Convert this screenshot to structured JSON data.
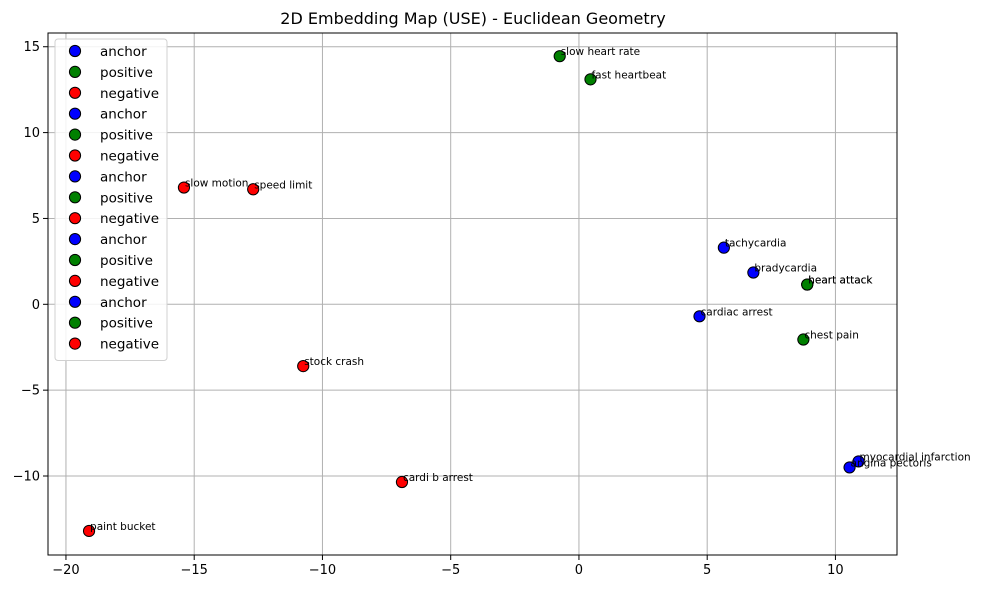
{
  "chart_data": {
    "type": "scatter",
    "title": "2D Embedding Map (USE) - Euclidean Geometry",
    "xlabel": "",
    "ylabel": "",
    "xlim": [
      -20.7,
      12.4
    ],
    "ylim": [
      -14.6,
      15.8
    ],
    "xticks": [
      -20,
      -15,
      -10,
      -5,
      0,
      5,
      10
    ],
    "yticks": [
      -10,
      -5,
      0,
      5,
      10,
      15
    ],
    "xtick_labels": [
      "−20",
      "−15",
      "−10",
      "−5",
      "0",
      "5",
      "10"
    ],
    "ytick_labels": [
      "−10",
      "−5",
      "0",
      "5",
      "10",
      "15"
    ],
    "grid": true,
    "legend_position": "upper-left",
    "colors": {
      "anchor": "#0000ff",
      "positive": "#008000",
      "negative": "#ff0000"
    },
    "legend": [
      {
        "label": "anchor",
        "role": "anchor"
      },
      {
        "label": "positive",
        "role": "positive"
      },
      {
        "label": "negative",
        "role": "negative"
      },
      {
        "label": "anchor",
        "role": "anchor"
      },
      {
        "label": "positive",
        "role": "positive"
      },
      {
        "label": "negative",
        "role": "negative"
      },
      {
        "label": "anchor",
        "role": "anchor"
      },
      {
        "label": "positive",
        "role": "positive"
      },
      {
        "label": "negative",
        "role": "negative"
      },
      {
        "label": "anchor",
        "role": "anchor"
      },
      {
        "label": "positive",
        "role": "positive"
      },
      {
        "label": "negative",
        "role": "negative"
      },
      {
        "label": "anchor",
        "role": "anchor"
      },
      {
        "label": "positive",
        "role": "positive"
      },
      {
        "label": "negative",
        "role": "negative"
      }
    ],
    "points": [
      {
        "label": "tachycardia",
        "role": "anchor",
        "x": 5.65,
        "y": 3.3
      },
      {
        "label": "fast heartbeat",
        "role": "positive",
        "x": 0.45,
        "y": 13.1
      },
      {
        "label": "speed limit",
        "role": "negative",
        "x": -12.7,
        "y": 6.7
      },
      {
        "label": "bradycardia",
        "role": "anchor",
        "x": 6.8,
        "y": 1.85
      },
      {
        "label": "slow heart rate",
        "role": "positive",
        "x": -0.75,
        "y": 14.45
      },
      {
        "label": "slow motion",
        "role": "negative",
        "x": -15.4,
        "y": 6.8
      },
      {
        "label": "cardiac arrest",
        "role": "anchor",
        "x": 4.7,
        "y": -0.7
      },
      {
        "label": "heart attack",
        "role": "positive",
        "x": 8.9,
        "y": 1.15
      },
      {
        "label": "cardi b arrest",
        "role": "negative",
        "x": -6.9,
        "y": -10.35
      },
      {
        "label": "myocardial infarction",
        "role": "anchor",
        "x": 10.9,
        "y": -9.15
      },
      {
        "label": "heart attack",
        "role": "positive",
        "x": 8.9,
        "y": 1.15
      },
      {
        "label": "stock crash",
        "role": "negative",
        "x": -10.75,
        "y": -3.6
      },
      {
        "label": "angina pectoris",
        "role": "anchor",
        "x": 10.55,
        "y": -9.5
      },
      {
        "label": "chest pain",
        "role": "positive",
        "x": 8.75,
        "y": -2.05
      },
      {
        "label": "paint bucket",
        "role": "negative",
        "x": -19.1,
        "y": -13.2
      }
    ]
  }
}
